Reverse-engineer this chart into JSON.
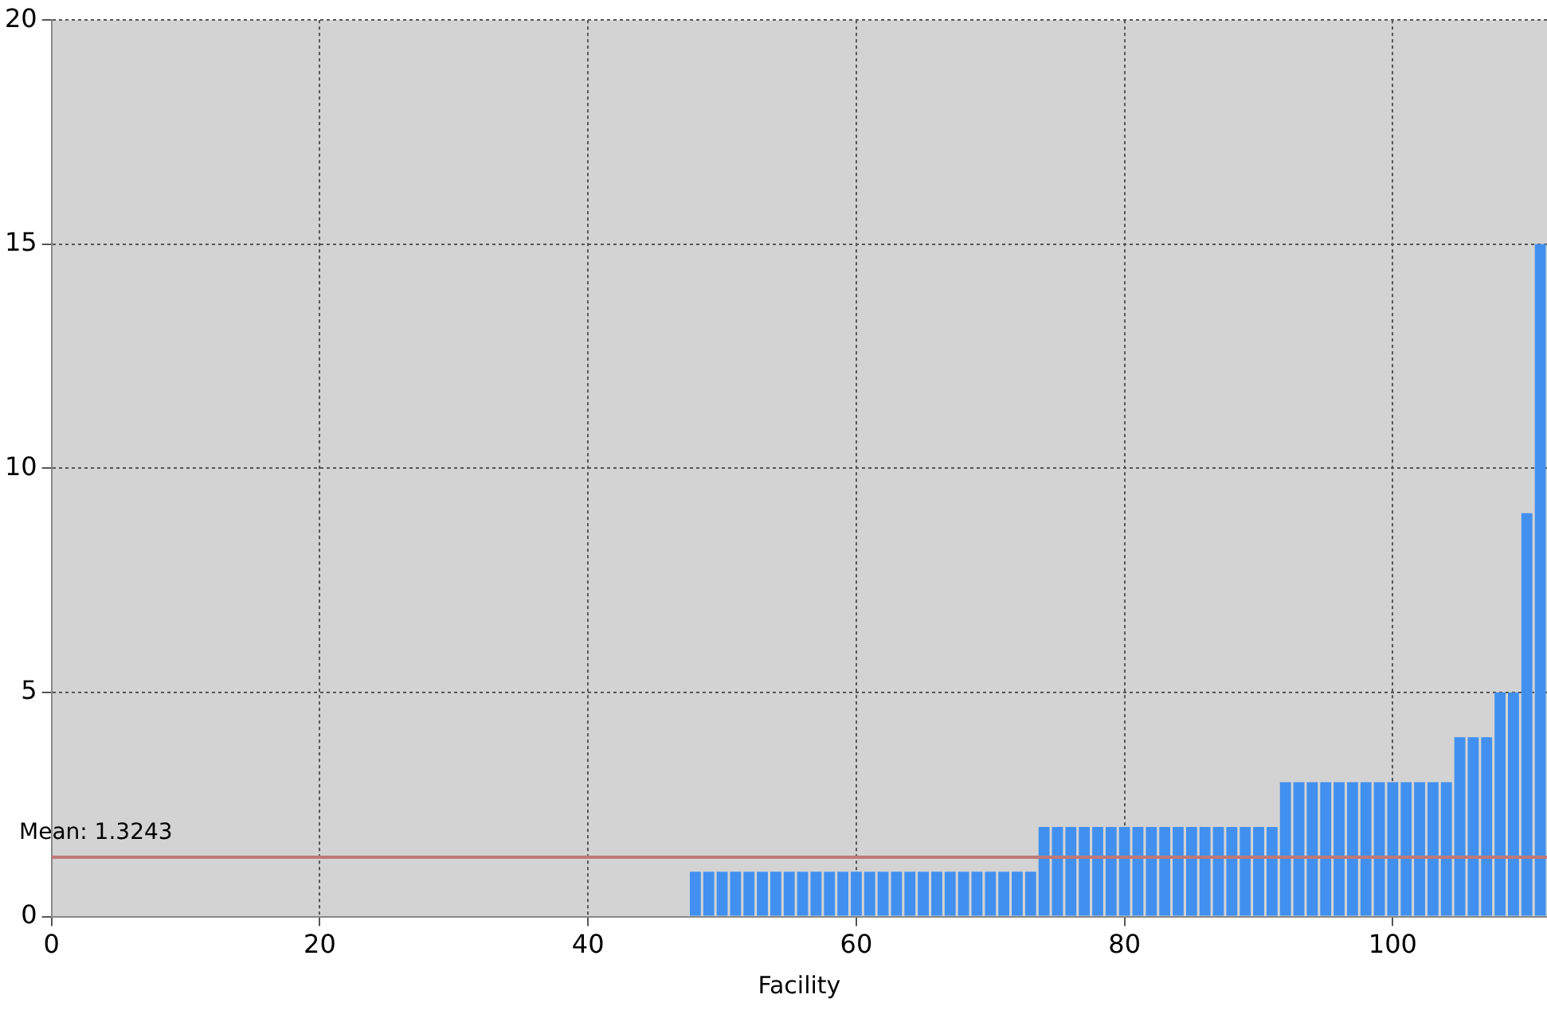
{
  "chart_data": {
    "type": "bar",
    "xlabel": "Facility",
    "x": [
      48,
      49,
      50,
      51,
      52,
      53,
      54,
      55,
      56,
      57,
      58,
      59,
      60,
      61,
      62,
      63,
      64,
      65,
      66,
      67,
      68,
      69,
      70,
      71,
      72,
      73,
      74,
      75,
      76,
      77,
      78,
      79,
      80,
      81,
      82,
      83,
      84,
      85,
      86,
      87,
      88,
      89,
      90,
      91,
      92,
      93,
      94,
      95,
      96,
      97,
      98,
      99,
      100,
      101,
      102,
      103,
      104,
      105,
      106,
      107,
      108,
      109,
      110,
      111
    ],
    "values": [
      1,
      1,
      1,
      1,
      1,
      1,
      1,
      1,
      1,
      1,
      1,
      1,
      1,
      1,
      1,
      1,
      1,
      1,
      1,
      1,
      1,
      1,
      1,
      1,
      1,
      1,
      2,
      2,
      2,
      2,
      2,
      2,
      2,
      2,
      2,
      2,
      2,
      2,
      2,
      2,
      2,
      2,
      2,
      2,
      3,
      3,
      3,
      3,
      3,
      3,
      3,
      3,
      3,
      3,
      3,
      3,
      3,
      4,
      4,
      4,
      5,
      5,
      9,
      15
    ],
    "color": "#4190f0",
    "xlim": [
      0,
      111.5
    ],
    "xticks": [
      0,
      20,
      40,
      60,
      80,
      100
    ],
    "ylim": [
      0,
      20
    ],
    "yticks": [
      0,
      5,
      10,
      15,
      20
    ],
    "grid": true,
    "legend": false,
    "ref_lines": [
      {
        "axis": "y",
        "value": 1.3243,
        "label": "Mean: 1.3243",
        "color": "#c07878"
      }
    ]
  }
}
